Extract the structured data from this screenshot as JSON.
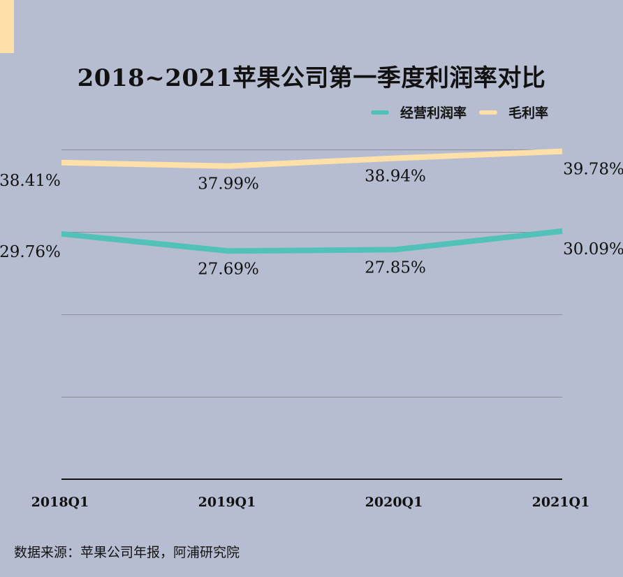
{
  "chart_data": {
    "type": "line",
    "title": "2018~2021苹果公司第一季度利润率对比",
    "categories": [
      "2018Q1",
      "2019Q1",
      "2020Q1",
      "2021Q1"
    ],
    "series": [
      {
        "name": "经营利润率",
        "color": "#52c1b8",
        "values": [
          29.76,
          27.69,
          27.85,
          30.09
        ],
        "labels": [
          "29.76%",
          "27.69%",
          "27.85%",
          "30.09%"
        ]
      },
      {
        "name": "毛利率",
        "color": "#ffe0a9",
        "values": [
          38.41,
          37.99,
          38.94,
          39.78
        ],
        "labels": [
          "38.41%",
          "37.99%",
          "38.94%",
          "39.78%"
        ]
      }
    ],
    "ylim": [
      0,
      40
    ],
    "grid": true,
    "legend_position": "top-right",
    "xlabel": "",
    "ylabel": ""
  },
  "source": "数据来源：苹果公司年报，阿浦研究院",
  "colors": {
    "background": "#b7bdd1",
    "accent": "#ffe0a9",
    "gridline": "#8d8f9a",
    "axis": "#111111"
  }
}
